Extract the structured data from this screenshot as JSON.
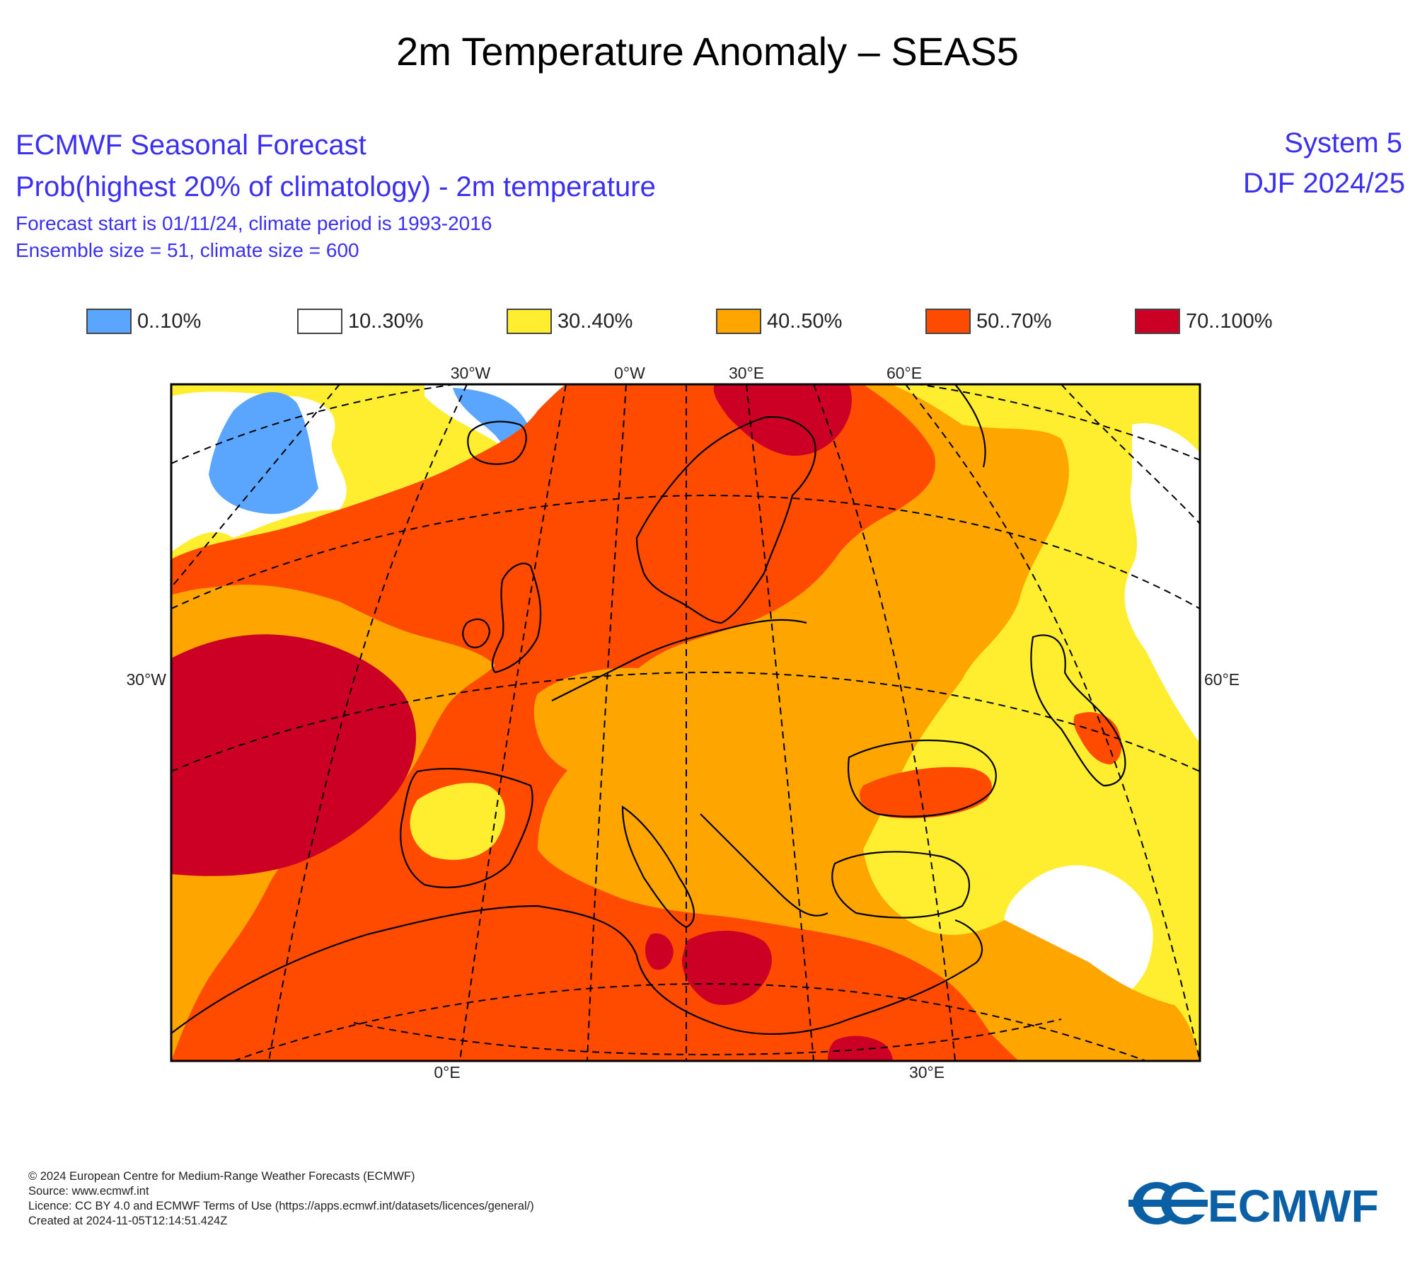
{
  "page_title": "2m Temperature Anomaly – SEAS5",
  "header": {
    "line1": "ECMWF Seasonal Forecast",
    "line2": "Prob(highest 20% of climatology) - 2m temperature",
    "line3": "Forecast start is 01/11/24, climate period is 1993-2016",
    "line4": "Ensemble size = 51, climate size = 600",
    "system": "System 5",
    "season": "DJF 2024/25"
  },
  "legend": [
    {
      "label": "0..10%",
      "color": "#5aa6ff"
    },
    {
      "label": "10..30%",
      "color": "#ffffff"
    },
    {
      "label": "30..40%",
      "color": "#ffee2f"
    },
    {
      "label": "40..50%",
      "color": "#ffa500"
    },
    {
      "label": "50..70%",
      "color": "#ff4b00"
    },
    {
      "label": "70..100%",
      "color": "#cc0025"
    }
  ],
  "map": {
    "graticule_labels": {
      "top": [
        "30°W",
        "0°W",
        "30°E",
        "60°E"
      ],
      "left": "30°W",
      "right": "60°E",
      "bottom": [
        "0°E",
        "30°E"
      ]
    }
  },
  "footer": {
    "copyright": "© 2024 European Centre for Medium-Range Weather Forecasts (ECMWF)",
    "source": "Source: www.ecmwf.int",
    "licence": "Licence: CC BY 4.0 and ECMWF Terms of Use (https://apps.ecmwf.int/datasets/licences/general/)",
    "created": "Created at 2024-11-05T12:14:51.424Z"
  },
  "logo": {
    "text": "ECMWF",
    "color": "#0b5fa5"
  }
}
